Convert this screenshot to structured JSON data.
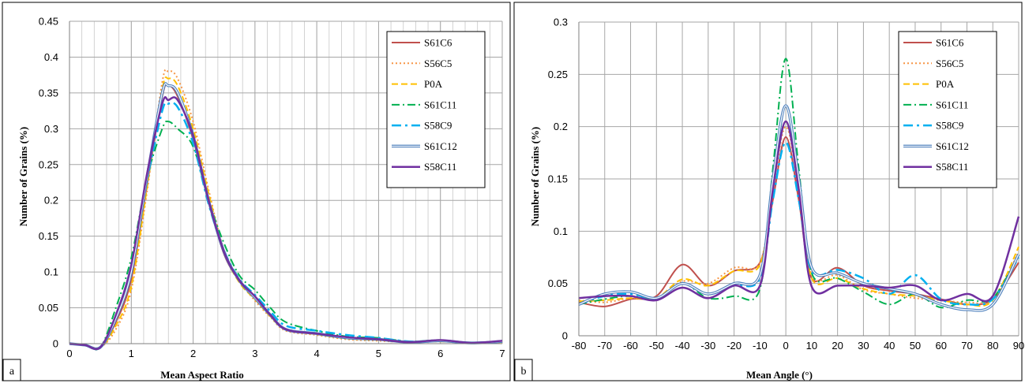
{
  "chart_data": [
    {
      "type": "line",
      "panel_label": "a",
      "title": "",
      "xlabel": "Mean Aspect Ratio",
      "ylabel": "Number of Grains (%)",
      "xlim": [
        0,
        7
      ],
      "ylim": [
        0,
        0.45
      ],
      "x_ticks": [
        0,
        1,
        2,
        3,
        4,
        5,
        6,
        7
      ],
      "y_ticks": [
        0,
        0.05,
        0.1,
        0.15,
        0.2,
        0.25,
        0.3,
        0.35,
        0.4,
        0.45
      ],
      "x_tick_labels": [
        "0",
        "1",
        "2",
        "3",
        "4",
        "5",
        "6",
        "7"
      ],
      "y_tick_labels": [
        "0",
        "0.05",
        "0.1",
        "0.15",
        "0.2",
        "0.25",
        "0.3",
        "0.35",
        "0.4",
        "0.45"
      ],
      "x_minor_step": 0.2,
      "grid": true,
      "legend_position": "top-right",
      "series": [
        {
          "name": "S61C6",
          "x": [
            0,
            0.25,
            0.5,
            0.75,
            1.0,
            1.25,
            1.5,
            1.6,
            1.75,
            2.0,
            2.25,
            2.5,
            2.75,
            3.0,
            3.25,
            3.5,
            4.0,
            4.5,
            5.0,
            5.5,
            6.0,
            6.5,
            7.0
          ],
          "y": [
            0,
            -0.002,
            -0.005,
            0.03,
            0.09,
            0.22,
            0.345,
            0.36,
            0.345,
            0.285,
            0.2,
            0.125,
            0.088,
            0.065,
            0.04,
            0.02,
            0.014,
            0.009,
            0.006,
            0.002,
            0.004,
            0.001,
            0.003
          ]
        },
        {
          "name": "S56C5",
          "x": [
            0,
            0.25,
            0.5,
            0.75,
            1.0,
            1.25,
            1.5,
            1.6,
            1.75,
            2.0,
            2.25,
            2.5,
            2.75,
            3.0,
            3.25,
            3.5,
            4.0,
            4.5,
            5.0,
            5.5,
            6.0,
            6.5,
            7.0
          ],
          "y": [
            0,
            -0.002,
            -0.005,
            0.02,
            0.075,
            0.21,
            0.365,
            0.38,
            0.37,
            0.31,
            0.215,
            0.13,
            0.088,
            0.06,
            0.037,
            0.018,
            0.012,
            0.006,
            0.004,
            0.002,
            0.003,
            0.001,
            0.002
          ]
        },
        {
          "name": "P0A",
          "x": [
            0,
            0.25,
            0.5,
            0.75,
            1.0,
            1.25,
            1.5,
            1.6,
            1.75,
            2.0,
            2.25,
            2.5,
            2.75,
            3.0,
            3.25,
            3.5,
            4.0,
            4.5,
            5.0,
            5.5,
            6.0,
            6.5,
            7.0
          ],
          "y": [
            0,
            -0.002,
            -0.005,
            0.025,
            0.08,
            0.215,
            0.355,
            0.37,
            0.36,
            0.3,
            0.21,
            0.128,
            0.085,
            0.062,
            0.038,
            0.02,
            0.013,
            0.007,
            0.005,
            0.002,
            0.003,
            0.001,
            0.002
          ]
        },
        {
          "name": "S61C11",
          "x": [
            0,
            0.25,
            0.5,
            0.75,
            1.0,
            1.25,
            1.5,
            1.6,
            1.75,
            2.0,
            2.25,
            2.5,
            2.75,
            3.0,
            3.25,
            3.5,
            4.0,
            4.5,
            5.0,
            5.5,
            6.0,
            6.5,
            7.0
          ],
          "y": [
            0,
            -0.002,
            -0.005,
            0.05,
            0.12,
            0.23,
            0.3,
            0.31,
            0.3,
            0.275,
            0.2,
            0.14,
            0.095,
            0.075,
            0.05,
            0.03,
            0.018,
            0.01,
            0.008,
            0.003,
            0.005,
            0.001,
            0.004
          ]
        },
        {
          "name": "S58C9",
          "x": [
            0,
            0.25,
            0.5,
            0.75,
            1.0,
            1.25,
            1.5,
            1.6,
            1.75,
            2.0,
            2.25,
            2.5,
            2.75,
            3.0,
            3.25,
            3.5,
            4.0,
            4.5,
            5.0,
            5.5,
            6.0,
            6.5,
            7.0
          ],
          "y": [
            0,
            -0.002,
            -0.005,
            0.035,
            0.1,
            0.225,
            0.325,
            0.335,
            0.33,
            0.28,
            0.195,
            0.13,
            0.09,
            0.068,
            0.045,
            0.025,
            0.018,
            0.012,
            0.008,
            0.003,
            0.004,
            0.001,
            0.003
          ]
        },
        {
          "name": "S61C12",
          "x": [
            0,
            0.25,
            0.5,
            0.75,
            1.0,
            1.25,
            1.5,
            1.6,
            1.75,
            2.0,
            2.25,
            2.5,
            2.75,
            3.0,
            3.25,
            3.5,
            4.0,
            4.5,
            5.0,
            5.5,
            6.0,
            6.5,
            7.0
          ],
          "y": [
            0,
            -0.002,
            -0.005,
            0.035,
            0.1,
            0.23,
            0.35,
            0.36,
            0.35,
            0.29,
            0.2,
            0.128,
            0.088,
            0.064,
            0.04,
            0.02,
            0.014,
            0.008,
            0.006,
            0.002,
            0.004,
            0.001,
            0.003
          ]
        },
        {
          "name": "S58C11",
          "x": [
            0,
            0.25,
            0.5,
            0.75,
            1.0,
            1.25,
            1.5,
            1.6,
            1.75,
            2.0,
            2.25,
            2.5,
            2.75,
            3.0,
            3.25,
            3.5,
            4.0,
            4.5,
            5.0,
            5.5,
            6.0,
            6.5,
            7.0
          ],
          "y": [
            0,
            -0.002,
            -0.005,
            0.04,
            0.11,
            0.235,
            0.335,
            0.34,
            0.34,
            0.29,
            0.2,
            0.128,
            0.088,
            0.066,
            0.04,
            0.02,
            0.014,
            0.009,
            0.006,
            0.002,
            0.005,
            0.001,
            0.004
          ]
        }
      ]
    },
    {
      "type": "line",
      "panel_label": "b",
      "title": "",
      "xlabel": "Mean Angle (°)",
      "ylabel": "Number of Grains (%)",
      "xlim": [
        -80,
        90
      ],
      "ylim": [
        0,
        0.3
      ],
      "x_ticks": [
        -80,
        -70,
        -60,
        -50,
        -40,
        -30,
        -20,
        -10,
        0,
        10,
        20,
        30,
        40,
        50,
        60,
        70,
        80,
        90
      ],
      "y_ticks": [
        0,
        0.05,
        0.1,
        0.15,
        0.2,
        0.25,
        0.3
      ],
      "x_tick_labels": [
        "-80",
        "-70",
        "-60",
        "-50",
        "-40",
        "-30",
        "-20",
        "-10",
        "0",
        "10",
        "20",
        "30",
        "40",
        "50",
        "60",
        "70",
        "80",
        "90"
      ],
      "y_tick_labels": [
        "0",
        "0.05",
        "0.1",
        "0.15",
        "0.2",
        "0.25",
        "0.3"
      ],
      "grid": true,
      "legend_position": "top-right",
      "series": [
        {
          "name": "S61C6",
          "x": [
            -80,
            -70,
            -60,
            -50,
            -40,
            -30,
            -20,
            -10,
            -5,
            0,
            5,
            10,
            20,
            30,
            40,
            50,
            60,
            70,
            80,
            90
          ],
          "y": [
            0.032,
            0.028,
            0.035,
            0.038,
            0.068,
            0.048,
            0.062,
            0.07,
            0.13,
            0.19,
            0.13,
            0.055,
            0.065,
            0.048,
            0.043,
            0.04,
            0.035,
            0.03,
            0.035,
            0.07
          ]
        },
        {
          "name": "S56C5",
          "x": [
            -80,
            -70,
            -60,
            -50,
            -40,
            -30,
            -20,
            -10,
            -5,
            0,
            5,
            10,
            20,
            30,
            40,
            50,
            60,
            70,
            80,
            90
          ],
          "y": [
            0.034,
            0.032,
            0.036,
            0.036,
            0.052,
            0.05,
            0.065,
            0.07,
            0.14,
            0.2,
            0.14,
            0.058,
            0.058,
            0.044,
            0.04,
            0.036,
            0.034,
            0.032,
            0.036,
            0.08
          ]
        },
        {
          "name": "P0A",
          "x": [
            -80,
            -70,
            -60,
            -50,
            -40,
            -30,
            -20,
            -10,
            -5,
            0,
            5,
            10,
            20,
            30,
            40,
            50,
            60,
            70,
            80,
            90
          ],
          "y": [
            0.033,
            0.034,
            0.036,
            0.036,
            0.054,
            0.048,
            0.062,
            0.068,
            0.14,
            0.205,
            0.14,
            0.055,
            0.055,
            0.045,
            0.04,
            0.038,
            0.034,
            0.03,
            0.034,
            0.085
          ]
        },
        {
          "name": "S61C11",
          "x": [
            -80,
            -70,
            -60,
            -50,
            -40,
            -30,
            -20,
            -10,
            -5,
            0,
            5,
            10,
            20,
            30,
            40,
            50,
            60,
            70,
            80,
            90
          ],
          "y": [
            0.03,
            0.035,
            0.038,
            0.035,
            0.05,
            0.036,
            0.038,
            0.045,
            0.16,
            0.265,
            0.16,
            0.06,
            0.055,
            0.042,
            0.03,
            0.04,
            0.027,
            0.034,
            0.036,
            0.078
          ]
        },
        {
          "name": "S58C9",
          "x": [
            -80,
            -70,
            -60,
            -50,
            -40,
            -30,
            -20,
            -10,
            -5,
            0,
            5,
            10,
            20,
            30,
            40,
            50,
            60,
            70,
            80,
            90
          ],
          "y": [
            0.03,
            0.038,
            0.04,
            0.036,
            0.05,
            0.04,
            0.048,
            0.055,
            0.13,
            0.185,
            0.13,
            0.062,
            0.063,
            0.055,
            0.04,
            0.058,
            0.035,
            0.03,
            0.035,
            0.075
          ]
        },
        {
          "name": "S61C12",
          "x": [
            -80,
            -70,
            -60,
            -50,
            -40,
            -30,
            -20,
            -10,
            -5,
            0,
            5,
            10,
            20,
            30,
            40,
            50,
            60,
            70,
            80,
            90
          ],
          "y": [
            0.03,
            0.04,
            0.042,
            0.036,
            0.05,
            0.04,
            0.05,
            0.058,
            0.15,
            0.22,
            0.15,
            0.065,
            0.06,
            0.05,
            0.045,
            0.04,
            0.03,
            0.025,
            0.03,
            0.078
          ]
        },
        {
          "name": "S58C11",
          "x": [
            -80,
            -70,
            -60,
            -50,
            -40,
            -30,
            -20,
            -10,
            -5,
            0,
            5,
            10,
            20,
            30,
            40,
            50,
            60,
            70,
            80,
            90
          ],
          "y": [
            0.036,
            0.038,
            0.038,
            0.034,
            0.046,
            0.036,
            0.048,
            0.048,
            0.14,
            0.205,
            0.14,
            0.047,
            0.048,
            0.048,
            0.046,
            0.048,
            0.034,
            0.04,
            0.038,
            0.114
          ]
        }
      ]
    }
  ],
  "styles": {
    "S61C6": {
      "color": "#c0504d",
      "width": 2.0,
      "dash": "",
      "double": false
    },
    "S56C5": {
      "color": "#f79646",
      "width": 2.0,
      "dash": "2,3",
      "double": false
    },
    "P0A": {
      "color": "#ffc000",
      "width": 2.0,
      "dash": "8,4",
      "double": false
    },
    "S61C11": {
      "color": "#00b050",
      "width": 2.0,
      "dash": "10,4,2,4",
      "double": false
    },
    "S58C9": {
      "color": "#00b0f0",
      "width": 2.5,
      "dash": "12,5,3,5",
      "double": false
    },
    "S61C12": {
      "color": "#4f81bd",
      "width": 3.5,
      "dash": "",
      "double": true
    },
    "S58C11": {
      "color": "#7030a0",
      "width": 2.5,
      "dash": "",
      "double": false
    }
  }
}
